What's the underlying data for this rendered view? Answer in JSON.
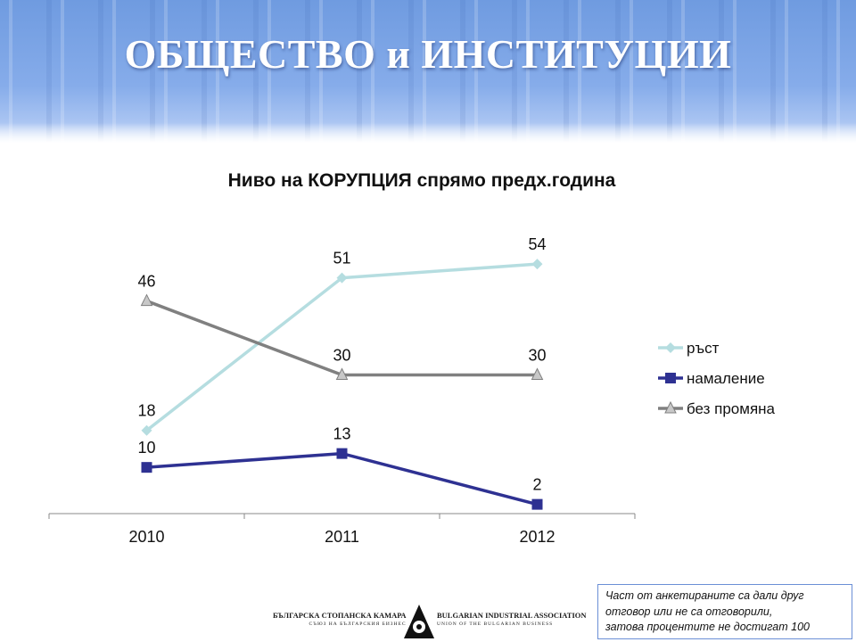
{
  "slide": {
    "title": "ОБЩЕСТВО и ИНСТИТУЦИИ"
  },
  "chart_data": {
    "type": "line",
    "title": "Ниво на КОРУПЦИЯ спрямо предх.година",
    "categories": [
      "2010",
      "2011",
      "2012"
    ],
    "ylim": [
      0,
      60
    ],
    "grid": false,
    "legend_position": "right",
    "series": [
      {
        "name": "ръст",
        "values": [
          18,
          51,
          54
        ],
        "color": "#b5dde0",
        "marker": "diamond"
      },
      {
        "name": "намаление",
        "values": [
          10,
          13,
          2
        ],
        "color": "#2e3192",
        "marker": "square"
      },
      {
        "name": "без промяна",
        "values": [
          46,
          30,
          30
        ],
        "color": "#808080",
        "marker": "triangle"
      }
    ]
  },
  "note": {
    "line1": "Част от анкетираните са дали друг",
    "line2": "отговор или не са отговорили,",
    "line3": "затова процентите не достигат 100"
  },
  "logo": {
    "left_main": "БЪЛГАРСКА СТОПАНСКА КАМАРА",
    "left_sub": "СЪЮЗ НА БЪЛГАРСКИЯ БИЗНЕС",
    "right_main": "BULGARIAN INDUSTRIAL ASSOCIATION",
    "right_sub": "UNION OF THE BULGARIAN BUSINESS"
  }
}
